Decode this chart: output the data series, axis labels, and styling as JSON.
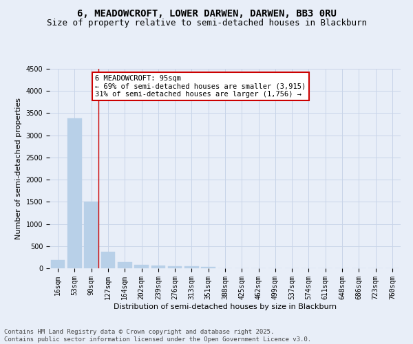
{
  "title_line1": "6, MEADOWCROFT, LOWER DARWEN, DARWEN, BB3 0RU",
  "title_line2": "Size of property relative to semi-detached houses in Blackburn",
  "xlabel": "Distribution of semi-detached houses by size in Blackburn",
  "ylabel": "Number of semi-detached properties",
  "categories": [
    "16sqm",
    "53sqm",
    "90sqm",
    "127sqm",
    "164sqm",
    "202sqm",
    "239sqm",
    "276sqm",
    "313sqm",
    "351sqm",
    "388sqm",
    "425sqm",
    "462sqm",
    "499sqm",
    "537sqm",
    "574sqm",
    "611sqm",
    "648sqm",
    "686sqm",
    "723sqm",
    "760sqm"
  ],
  "values": [
    190,
    3380,
    1500,
    370,
    135,
    75,
    55,
    50,
    45,
    30,
    0,
    0,
    0,
    0,
    0,
    0,
    0,
    0,
    0,
    0,
    0
  ],
  "bar_color": "#b8d0e8",
  "bar_edge_color": "#b8d0e8",
  "vline_x_index": 2,
  "vline_color": "#cc0000",
  "annotation_text": "6 MEADOWCROFT: 95sqm\n← 69% of semi-detached houses are smaller (3,915)\n31% of semi-detached houses are larger (1,756) →",
  "annotation_box_color": "#ffffff",
  "annotation_box_edge_color": "#cc0000",
  "ylim": [
    0,
    4500
  ],
  "yticks": [
    0,
    500,
    1000,
    1500,
    2000,
    2500,
    3000,
    3500,
    4000,
    4500
  ],
  "grid_color": "#c8d4e8",
  "background_color": "#e8eef8",
  "plot_background_color": "#e8eef8",
  "footer_text": "Contains HM Land Registry data © Crown copyright and database right 2025.\nContains public sector information licensed under the Open Government Licence v3.0.",
  "title_fontsize": 10,
  "subtitle_fontsize": 9,
  "tick_fontsize": 7,
  "ylabel_fontsize": 8,
  "xlabel_fontsize": 8,
  "annotation_fontsize": 7.5,
  "footer_fontsize": 6.5
}
